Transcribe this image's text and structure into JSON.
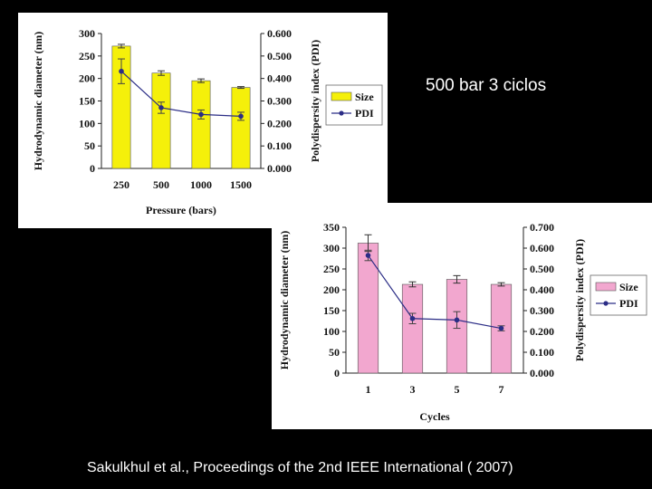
{
  "side_note": "500 bar 3 ciclos",
  "citation": "Sakulkhul et al., Proceedings of the 2nd IEEE International ( 2007)",
  "chart_data": [
    {
      "type": "bar",
      "xlabel": "Pressure (bars)",
      "ylabel": "Hydrodynamic diameter (nm)",
      "y2label": "Polydispersity index (PDI)",
      "categories": [
        "250",
        "500",
        "1000",
        "1500"
      ],
      "ylim": [
        0,
        300
      ],
      "yticks": [
        "0",
        "50",
        "100",
        "150",
        "200",
        "250",
        "300"
      ],
      "y2lim": [
        0,
        0.6
      ],
      "y2ticks": [
        "0.000",
        "0.100",
        "0.200",
        "0.300",
        "0.400",
        "0.500",
        "0.600"
      ],
      "bar_color": "#f5f00a",
      "line_color": "#2b2d86",
      "legend_position": "right",
      "series": [
        {
          "name": "Size",
          "axis": "left",
          "kind": "bar",
          "values": [
            272,
            212,
            195,
            180
          ],
          "errors": [
            4,
            5,
            4,
            2
          ]
        },
        {
          "name": "PDI",
          "axis": "right",
          "kind": "line",
          "values": [
            0.432,
            0.27,
            0.24,
            0.232
          ],
          "errors": [
            0.055,
            0.025,
            0.02,
            0.018
          ]
        }
      ]
    },
    {
      "type": "bar",
      "xlabel": "Cycles",
      "ylabel": "Hydrodynamic diameter (nm)",
      "y2label": "Polydispersity index (PDI)",
      "categories": [
        "1",
        "3",
        "5",
        "7"
      ],
      "ylim": [
        0,
        350
      ],
      "yticks": [
        "0",
        "50",
        "100",
        "150",
        "200",
        "250",
        "300",
        "350"
      ],
      "y2lim": [
        0,
        0.7
      ],
      "y2ticks": [
        "0.000",
        "0.100",
        "0.200",
        "0.300",
        "0.400",
        "0.500",
        "0.600",
        "0.700"
      ],
      "bar_color": "#f2a7cf",
      "line_color": "#2b2d86",
      "legend_position": "right",
      "series": [
        {
          "name": "Size",
          "axis": "left",
          "kind": "bar",
          "values": [
            312,
            213,
            225,
            213
          ],
          "errors": [
            20,
            6,
            9,
            4
          ]
        },
        {
          "name": "PDI",
          "axis": "right",
          "kind": "line",
          "values": [
            0.565,
            0.262,
            0.255,
            0.215
          ],
          "errors": [
            0.025,
            0.025,
            0.04,
            0.012
          ]
        }
      ]
    }
  ]
}
